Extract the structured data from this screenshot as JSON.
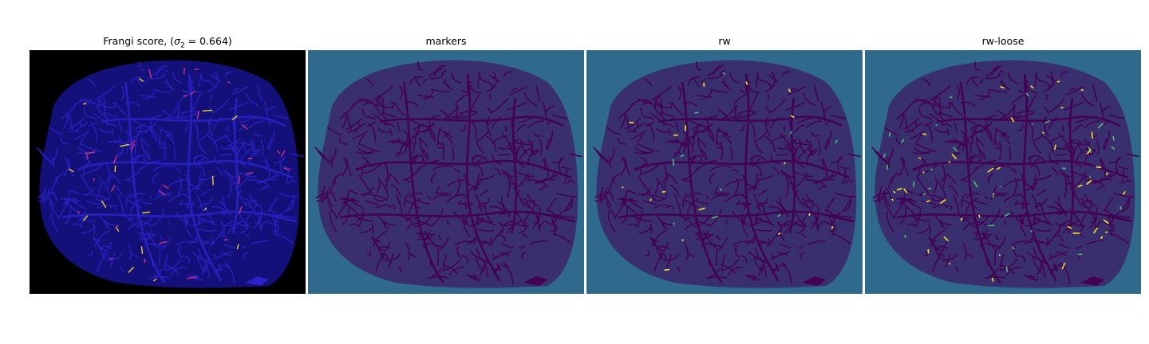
{
  "panels": [
    {
      "title_prefix": "Frangi score, (",
      "title_sym": "σ",
      "title_sub": "2",
      "title_suffix": " = 0.664)"
    },
    {
      "title": "markers"
    },
    {
      "title": "rw"
    },
    {
      "title": "rw-loose"
    }
  ],
  "colors": {
    "frangi_bg": "#000000",
    "frangi_tissue": "#14107a",
    "frangi_veins": "#2a22c8",
    "frangi_hot": "#f0d020",
    "frangi_mid": "#d03080",
    "viridis_bg": "#2f6a8d",
    "viridis_dark": "#440154",
    "viridis_yellow": "#f5e626",
    "viridis_green": "#4fbf70"
  }
}
